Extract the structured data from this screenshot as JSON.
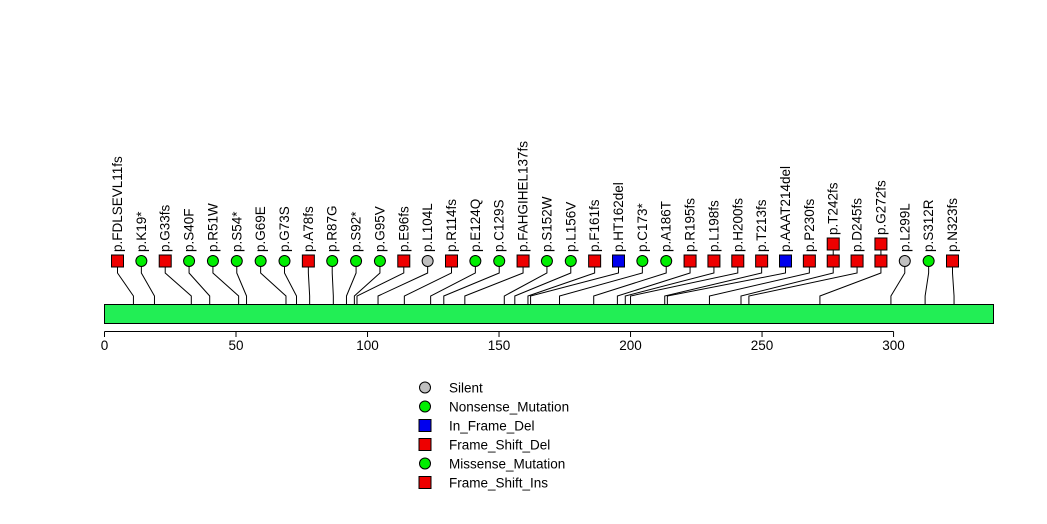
{
  "chart_data": {
    "type": "lollipop",
    "title": "",
    "xlabel": "",
    "ylabel": "",
    "xlim": [
      0,
      338
    ],
    "x_ticks": [
      0,
      50,
      100,
      150,
      200,
      250,
      300
    ],
    "protein_bar_color": "#22ee55",
    "categories": [
      {
        "name": "Silent",
        "color": "#c0c0c0",
        "shape": "circle"
      },
      {
        "name": "Nonsense_Mutation",
        "color": "#00ee00",
        "shape": "circle"
      },
      {
        "name": "In_Frame_Del",
        "color": "#0000ee",
        "shape": "square"
      },
      {
        "name": "Frame_Shift_Del",
        "color": "#ee0000",
        "shape": "square"
      },
      {
        "name": "Missense_Mutation",
        "color": "#00ee00",
        "shape": "circle"
      },
      {
        "name": "Frame_Shift_Ins",
        "color": "#ee0000",
        "shape": "square"
      }
    ],
    "mutations": [
      {
        "label": "p.FDLSEVL11fs",
        "position": 11,
        "category": "Frame_Shift_Del",
        "count": 1
      },
      {
        "label": "p.K19*",
        "position": 19,
        "category": "Nonsense_Mutation",
        "count": 1
      },
      {
        "label": "p.G33fs",
        "position": 33,
        "category": "Frame_Shift_Del",
        "count": 1
      },
      {
        "label": "p.S40F",
        "position": 40,
        "category": "Missense_Mutation",
        "count": 1
      },
      {
        "label": "p.R51W",
        "position": 51,
        "category": "Missense_Mutation",
        "count": 1
      },
      {
        "label": "p.S54*",
        "position": 54,
        "category": "Nonsense_Mutation",
        "count": 1
      },
      {
        "label": "p.G69E",
        "position": 69,
        "category": "Missense_Mutation",
        "count": 1
      },
      {
        "label": "p.G73S",
        "position": 73,
        "category": "Missense_Mutation",
        "count": 1
      },
      {
        "label": "p.A78fs",
        "position": 78,
        "category": "Frame_Shift_Del",
        "count": 1
      },
      {
        "label": "p.R87G",
        "position": 87,
        "category": "Missense_Mutation",
        "count": 1
      },
      {
        "label": "p.S92*",
        "position": 92,
        "category": "Nonsense_Mutation",
        "count": 1
      },
      {
        "label": "p.G95V",
        "position": 95,
        "category": "Missense_Mutation",
        "count": 1
      },
      {
        "label": "p.E96fs",
        "position": 96,
        "category": "Frame_Shift_Del",
        "count": 1
      },
      {
        "label": "p.L104L",
        "position": 104,
        "category": "Silent",
        "count": 1
      },
      {
        "label": "p.R114fs",
        "position": 114,
        "category": "Frame_Shift_Del",
        "count": 1
      },
      {
        "label": "p.E124Q",
        "position": 124,
        "category": "Missense_Mutation",
        "count": 1
      },
      {
        "label": "p.C129S",
        "position": 129,
        "category": "Missense_Mutation",
        "count": 1
      },
      {
        "label": "p.FAHGIHEL137fs",
        "position": 137,
        "category": "Frame_Shift_Del",
        "count": 1
      },
      {
        "label": "p.S152W",
        "position": 152,
        "category": "Missense_Mutation",
        "count": 1
      },
      {
        "label": "p.L156V",
        "position": 156,
        "category": "Missense_Mutation",
        "count": 1
      },
      {
        "label": "p.F161fs",
        "position": 161,
        "category": "Frame_Shift_Del",
        "count": 1
      },
      {
        "label": "p.HT162del",
        "position": 162,
        "category": "In_Frame_Del",
        "count": 1
      },
      {
        "label": "p.C173*",
        "position": 173,
        "category": "Nonsense_Mutation",
        "count": 1
      },
      {
        "label": "p.A186T",
        "position": 186,
        "category": "Missense_Mutation",
        "count": 1
      },
      {
        "label": "p.R195fs",
        "position": 195,
        "category": "Frame_Shift_Del",
        "count": 1
      },
      {
        "label": "p.L198fs",
        "position": 198,
        "category": "Frame_Shift_Del",
        "count": 1
      },
      {
        "label": "p.H200fs",
        "position": 200,
        "category": "Frame_Shift_Del",
        "count": 1
      },
      {
        "label": "p.T213fs",
        "position": 213,
        "category": "Frame_Shift_Del",
        "count": 1
      },
      {
        "label": "p.AAAT214del",
        "position": 214,
        "category": "In_Frame_Del",
        "count": 1
      },
      {
        "label": "p.P230fs",
        "position": 230,
        "category": "Frame_Shift_Del",
        "count": 1
      },
      {
        "label": "p.T242fs",
        "position": 242,
        "category": "Frame_Shift_Del",
        "count": 2
      },
      {
        "label": "p.D245fs",
        "position": 245,
        "category": "Frame_Shift_Del",
        "count": 1
      },
      {
        "label": "p.G272fs",
        "position": 272,
        "category": "Frame_Shift_Del",
        "count": 2
      },
      {
        "label": "p.L299L",
        "position": 299,
        "category": "Silent",
        "count": 1
      },
      {
        "label": "p.S312R",
        "position": 312,
        "category": "Missense_Mutation",
        "count": 1
      },
      {
        "label": "p.N323fs",
        "position": 323,
        "category": "Frame_Shift_Del",
        "count": 1
      }
    ]
  }
}
